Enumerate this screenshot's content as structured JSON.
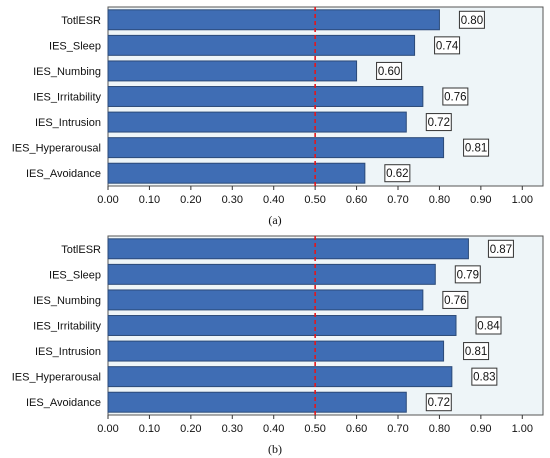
{
  "colors": {
    "bar": "#3f6db4",
    "bar_border": "#2b4a78",
    "plot_background": "#eef5f8",
    "reference_line": "#e3171b"
  },
  "chart_data": [
    {
      "type": "bar",
      "orientation": "horizontal",
      "caption": "(a)",
      "categories": [
        "TotlESR",
        "IES_Sleep",
        "IES_Numbing",
        "IES_Irritability",
        "IES_Intrusion",
        "IES_Hyperarousal",
        "IES_Avoidance"
      ],
      "values": [
        0.8,
        0.74,
        0.6,
        0.76,
        0.72,
        0.81,
        0.62
      ],
      "data_labels": [
        "0.80",
        "0.74",
        "0.60",
        "0.76",
        "0.72",
        "0.81",
        "0.62"
      ],
      "xlim": [
        0,
        1.05
      ],
      "xticks": [
        "0.00",
        "0.10",
        "0.20",
        "0.30",
        "0.40",
        "0.50",
        "0.60",
        "0.70",
        "0.80",
        "0.90",
        "1.00"
      ],
      "reference_line": 0.5,
      "grid": false,
      "legend": "none"
    },
    {
      "type": "bar",
      "orientation": "horizontal",
      "caption": "(b)",
      "categories": [
        "TotlESR",
        "IES_Sleep",
        "IES_Numbing",
        "IES_Irritability",
        "IES_Intrusion",
        "IES_Hyperarousal",
        "IES_Avoidance"
      ],
      "values": [
        0.87,
        0.79,
        0.76,
        0.84,
        0.81,
        0.83,
        0.72
      ],
      "data_labels": [
        "0.87",
        "0.79",
        "0.76",
        "0.84",
        "0.81",
        "0.83",
        "0.72"
      ],
      "xlim": [
        0,
        1.05
      ],
      "xticks": [
        "0.00",
        "0.10",
        "0.20",
        "0.30",
        "0.40",
        "0.50",
        "0.60",
        "0.70",
        "0.80",
        "0.90",
        "1.00"
      ],
      "reference_line": 0.5,
      "grid": false,
      "legend": "none"
    }
  ]
}
